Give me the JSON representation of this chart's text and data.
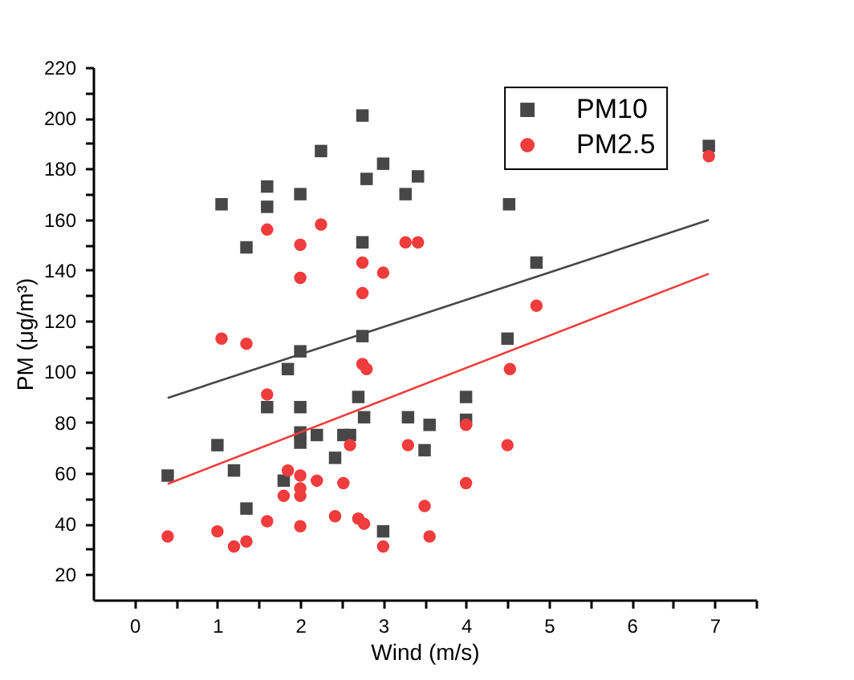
{
  "chart_data": {
    "type": "scatter",
    "xlabel": "Wind (m/s)",
    "ylabel": "PM (μg/m³)",
    "xlim": [
      -0.5,
      7.5
    ],
    "ylim": [
      10,
      220
    ],
    "xticks": [
      0,
      {
        "value": 0.5,
        "label": null
      },
      1,
      {
        "value": 1.5,
        "label": null
      },
      2,
      {
        "value": 2.5,
        "label": null
      },
      3,
      {
        "value": 3.5,
        "label": null
      },
      4,
      {
        "value": 4.5,
        "label": null
      },
      5,
      {
        "value": 5.5,
        "label": null
      },
      6,
      {
        "value": 6.5,
        "label": null
      },
      7,
      {
        "value": 7.5,
        "label": null
      }
    ],
    "yticks": [
      20,
      {
        "value": 30,
        "label": null
      },
      40,
      {
        "value": 50,
        "label": null
      },
      60,
      {
        "value": 70,
        "label": null
      },
      80,
      {
        "value": 90,
        "label": null
      },
      100,
      {
        "value": 110,
        "label": null
      },
      120,
      {
        "value": 130,
        "label": null
      },
      140,
      {
        "value": 150,
        "label": null
      },
      160,
      {
        "value": 170,
        "label": null
      },
      180,
      {
        "value": 190,
        "label": null
      },
      200,
      {
        "value": 210,
        "label": null
      },
      220
    ],
    "grid": false,
    "legend": "top right",
    "series": [
      {
        "name": "PM10",
        "color": "#474747",
        "marker": "square",
        "x": [
          1.05,
          1.6,
          1.6,
          2,
          2.25,
          2.75,
          2.8,
          3,
          3.27,
          3.42,
          4.52,
          4.85,
          4.5,
          6.93,
          2.75,
          1.35,
          2.75,
          2,
          0.4,
          1,
          1.2,
          1.35,
          1.6,
          1.85,
          1.8,
          2,
          2,
          2,
          2.2,
          2.42,
          2.52,
          2.6,
          2.7,
          2.77,
          3,
          3.3,
          4,
          3.56,
          3.5,
          4
        ],
        "values": [
          166,
          173,
          165,
          170,
          187,
          201,
          176,
          182,
          170,
          177,
          166,
          143,
          113,
          189,
          151,
          149,
          114,
          108,
          59,
          71,
          61,
          46,
          86,
          101,
          57,
          86,
          76,
          72,
          75,
          66,
          75,
          75,
          90,
          82,
          37,
          82,
          90,
          79,
          69,
          81
        ]
      },
      {
        "name": "PM2.5",
        "color": "#f03c3c",
        "marker": "circle",
        "x": [
          1.6,
          2.25,
          2,
          2.75,
          3,
          2,
          2.75,
          3.27,
          3.42,
          6.93,
          4.85,
          1.05,
          1.35,
          1.6,
          2.75,
          2.8,
          2.6,
          3.3,
          1.85,
          2,
          2.2,
          2,
          2,
          1.8,
          2.52,
          1.6,
          2.42,
          2.7,
          2.77,
          2,
          0.4,
          1,
          1.2,
          1.35,
          3,
          4.53,
          4,
          4.5,
          4,
          3.5,
          3.56
        ],
        "values": [
          156,
          158,
          150,
          143,
          139,
          137,
          131,
          151,
          151,
          185,
          126,
          113,
          111,
          91,
          103,
          101,
          71,
          71,
          61,
          59,
          57,
          54,
          51,
          51,
          56,
          41,
          43,
          42,
          40,
          39,
          35,
          37,
          31,
          33,
          31,
          101,
          79,
          71,
          56,
          47,
          35
        ]
      },
      {
        "type": "line",
        "color": "#474747",
        "x": [
          0.4,
          6.93
        ],
        "values": [
          89.6,
          159.8
        ]
      },
      {
        "type": "line",
        "color": "#f03c3c",
        "x": [
          0.4,
          6.93
        ],
        "values": [
          55.7,
          138.6
        ]
      }
    ]
  }
}
